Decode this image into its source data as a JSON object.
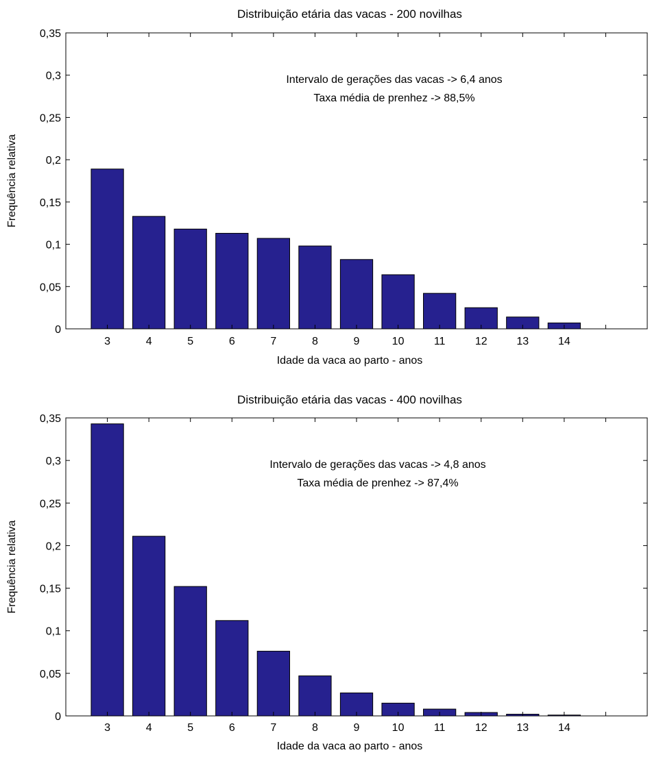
{
  "chart_data": [
    {
      "type": "bar",
      "title": "Distribuição etária das vacas - 200 novilhas",
      "xlabel": "Idade da vaca ao parto - anos",
      "ylabel": "Frequência relativa",
      "categories": [
        "3",
        "4",
        "5",
        "6",
        "7",
        "8",
        "9",
        "10",
        "11",
        "12",
        "13",
        "14"
      ],
      "values": [
        0.189,
        0.133,
        0.118,
        0.113,
        0.107,
        0.098,
        0.082,
        0.064,
        0.042,
        0.025,
        0.014,
        0.007
      ],
      "ylim": [
        0,
        0.35
      ],
      "xlim": [
        2,
        16
      ],
      "yticks": [
        0,
        0.05,
        0.1,
        0.15,
        0.2,
        0.25,
        0.3,
        0.35
      ],
      "ytick_labels": [
        "0",
        "0,05",
        "0,1",
        "0,15",
        "0,2",
        "0,25",
        "0,3",
        "0,35"
      ],
      "annotations": [
        "Intervalo de gerações das vacas -> 6,4 anos",
        "Taxa média de prenhez -> 88,5%"
      ],
      "bar_color": "#26218f",
      "grid": false,
      "legend": "none"
    },
    {
      "type": "bar",
      "title": "Distribuição etária das vacas - 400 novilhas",
      "xlabel": "Idade da vaca ao parto - anos",
      "ylabel": "Frequência relativa",
      "categories": [
        "3",
        "4",
        "5",
        "6",
        "7",
        "8",
        "9",
        "10",
        "11",
        "12",
        "13",
        "14"
      ],
      "values": [
        0.343,
        0.211,
        0.152,
        0.112,
        0.076,
        0.047,
        0.027,
        0.015,
        0.008,
        0.004,
        0.002,
        0.001
      ],
      "ylim": [
        0,
        0.35
      ],
      "xlim": [
        2,
        16
      ],
      "yticks": [
        0,
        0.05,
        0.1,
        0.15,
        0.2,
        0.25,
        0.3,
        0.35
      ],
      "ytick_labels": [
        "0",
        "0,05",
        "0,1",
        "0,15",
        "0,2",
        "0,25",
        "0,3",
        "0,35"
      ],
      "annotations": [
        "Intervalo de gerações das vacas -> 4,8 anos",
        "Taxa média de prenhez -> 87,4%"
      ],
      "bar_color": "#26218f",
      "grid": false,
      "legend": "none"
    }
  ]
}
